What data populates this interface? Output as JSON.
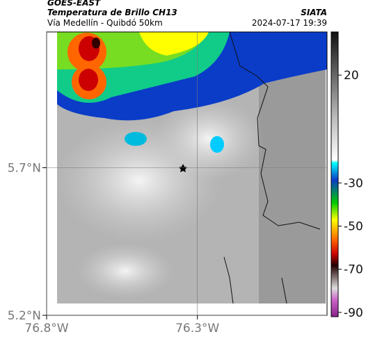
{
  "header": {
    "satellite": "GOES-EAST",
    "product": "Temperatura de Brillo CH13",
    "route": "Vía Medellín - Quibdó 50km",
    "source": "SIATA",
    "datetime": "2024-07-17 19:39"
  },
  "map": {
    "latlim": [
      5.2,
      6.16
    ],
    "lonlim": [
      -76.8,
      -75.87
    ],
    "latticks": [
      {
        "value": 5.7,
        "label": "5.7°N"
      },
      {
        "value": 5.2,
        "label": "5.2°N"
      }
    ],
    "lonticks": [
      {
        "value": -76.8,
        "label": "76.8°W"
      },
      {
        "value": -76.3,
        "label": "76.3°W"
      }
    ]
  },
  "colorbar": {
    "lim": [
      -92,
      40
    ],
    "ticks": [
      20,
      -30,
      -50,
      -70,
      -90
    ]
  }
}
